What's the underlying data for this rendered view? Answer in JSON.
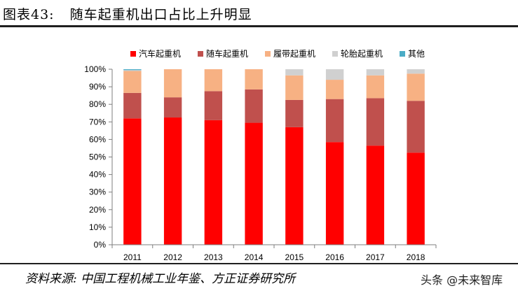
{
  "header": {
    "label": "图表43:",
    "title": "随车起重机出口占比上升明显"
  },
  "footer": {
    "source": "资料来源: 中国工程机械工业年鉴、方正证券研究所",
    "watermark": "头条 @未来智库"
  },
  "chart_data": {
    "type": "bar",
    "stacked": true,
    "categories": [
      "2011",
      "2012",
      "2013",
      "2014",
      "2015",
      "2016",
      "2017",
      "2018"
    ],
    "series": [
      {
        "name": "汽车起重机",
        "color": "#ff0000",
        "values": [
          72,
          72.5,
          71,
          69.5,
          67,
          58.5,
          56.5,
          52.5
        ]
      },
      {
        "name": "随车起重机",
        "color": "#c0504d",
        "values": [
          14.5,
          11.5,
          16.5,
          19,
          15.5,
          24.5,
          27,
          29.5
        ]
      },
      {
        "name": "履带起重机",
        "color": "#f7b183",
        "values": [
          12.5,
          16,
          12.5,
          11.5,
          14,
          11,
          13,
          15.5
        ]
      },
      {
        "name": "轮胎起重机",
        "color": "#d0d0d0",
        "values": [
          0.5,
          0,
          0,
          0,
          3.5,
          6,
          3.5,
          2.5
        ]
      },
      {
        "name": "其他",
        "color": "#4bacc6",
        "values": [
          0.5,
          0,
          0,
          0,
          0,
          0,
          0,
          0
        ]
      }
    ],
    "yticks": [
      "0%",
      "10%",
      "20%",
      "30%",
      "40%",
      "50%",
      "60%",
      "70%",
      "80%",
      "90%",
      "100%"
    ],
    "ylim": [
      0,
      100
    ],
    "grid": false,
    "legend": "top"
  }
}
